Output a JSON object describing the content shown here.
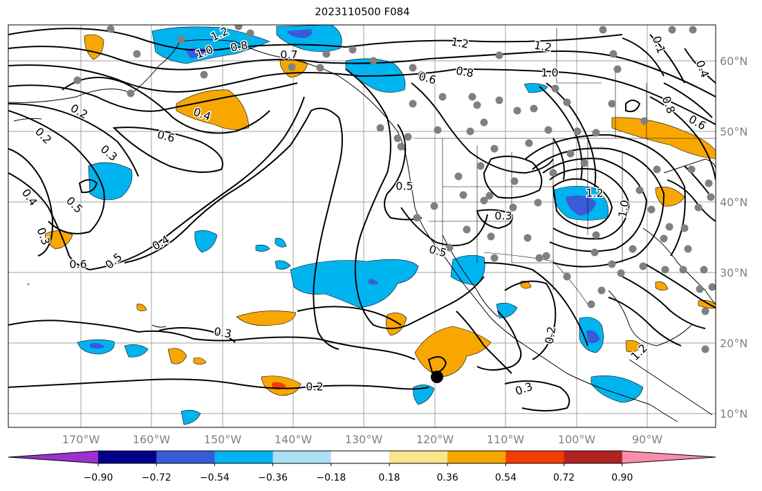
{
  "title": "2023110500 F084",
  "lon_ticks": [
    "170°W",
    "160°W",
    "150°W",
    "140°W",
    "130°W",
    "120°W",
    "110°W",
    "100°W",
    "90°W"
  ],
  "lat_ticks": [
    "60°N",
    "50°N",
    "40°N",
    "30°N",
    "20°N",
    "10°N"
  ],
  "contour_labels": [
    "1.2",
    "1.0",
    "0.8",
    "0.7",
    "1.2",
    "1.2",
    "0.8",
    "1.0",
    "0.6",
    "0.4",
    "0.2",
    "0.6",
    "0.2",
    "0.3",
    "0.4",
    "0.5",
    "0.3",
    "0.6",
    "0.5",
    "0.4",
    "0.5",
    "0.3",
    "0.5",
    "0.3",
    "0.2",
    "0.3",
    "0.2",
    "1.2",
    "1.0",
    "0.1",
    "0.4",
    "0.8",
    "0.6",
    "1.2"
  ],
  "colorbar": {
    "colors": [
      "#9932cc",
      "#00008b",
      "#3a5bd9",
      "#00b4f0",
      "#ade0f5",
      "#ffffff",
      "#f8e58c",
      "#f7a700",
      "#f53c00",
      "#b22222",
      "#fa8cac"
    ],
    "tick_labels": [
      "−0.90",
      "−0.72",
      "−0.54",
      "−0.36",
      "−0.18",
      "0.18",
      "0.36",
      "0.54",
      "0.72",
      "0.90"
    ]
  },
  "colors": {
    "negative_fill": "#00b4f0",
    "positive_fill": "#f7a700",
    "dots": "#808080",
    "grid": "#a0a0a0"
  }
}
